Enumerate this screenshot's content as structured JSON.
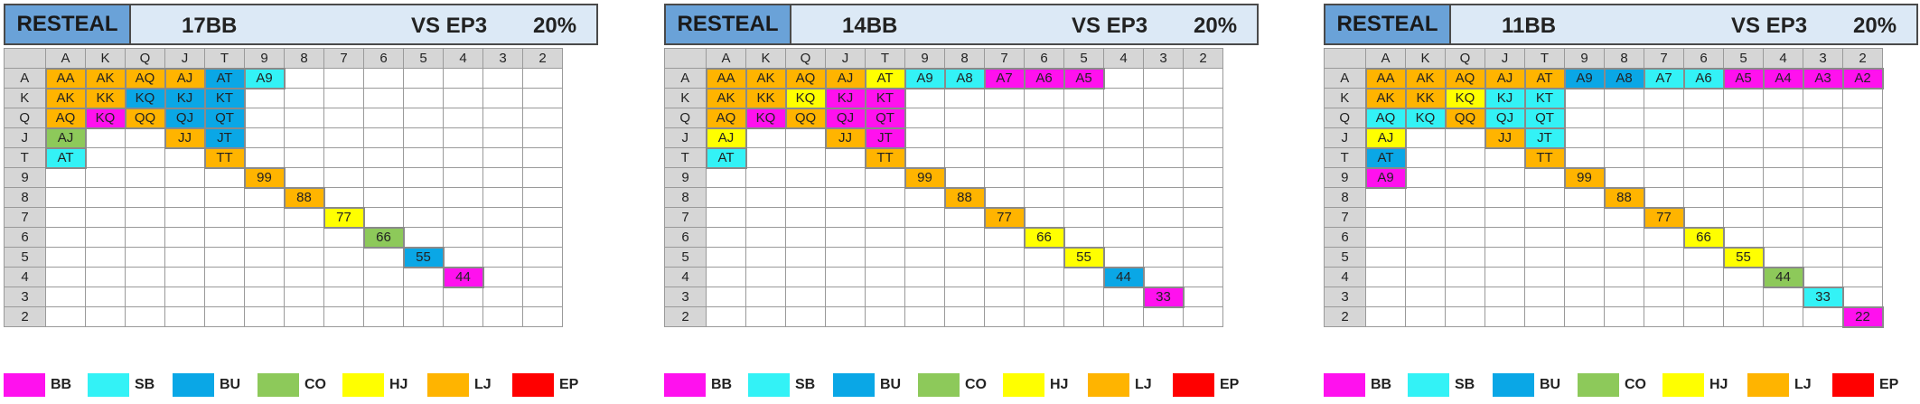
{
  "colors": {
    "BB": "#ff11ee",
    "SB": "#33f2f6",
    "BU": "#0aa7e6",
    "CO": "#8dc95a",
    "HJ": "#ffff00",
    "LJ": "#ffb400",
    "EP": "#ff0000"
  },
  "ranks": [
    "A",
    "K",
    "Q",
    "J",
    "T",
    "9",
    "8",
    "7",
    "6",
    "5",
    "4",
    "3",
    "2"
  ],
  "legend": [
    "BB",
    "SB",
    "BU",
    "CO",
    "HJ",
    "LJ",
    "EP"
  ],
  "panels": [
    {
      "title": "RESTEAL",
      "stack": "17BB",
      "vs": "VS EP3",
      "pct": "20%",
      "cells": [
        {
          "r": 0,
          "c": 0,
          "t": "AA",
          "p": "LJ"
        },
        {
          "r": 0,
          "c": 1,
          "t": "AK",
          "p": "LJ"
        },
        {
          "r": 0,
          "c": 2,
          "t": "AQ",
          "p": "LJ"
        },
        {
          "r": 0,
          "c": 3,
          "t": "AJ",
          "p": "LJ"
        },
        {
          "r": 0,
          "c": 4,
          "t": "AT",
          "p": "BU"
        },
        {
          "r": 0,
          "c": 5,
          "t": "A9",
          "p": "SB"
        },
        {
          "r": 1,
          "c": 0,
          "t": "AK",
          "p": "LJ"
        },
        {
          "r": 1,
          "c": 1,
          "t": "KK",
          "p": "LJ"
        },
        {
          "r": 1,
          "c": 2,
          "t": "KQ",
          "p": "BU"
        },
        {
          "r": 1,
          "c": 3,
          "t": "KJ",
          "p": "BU"
        },
        {
          "r": 1,
          "c": 4,
          "t": "KT",
          "p": "BU"
        },
        {
          "r": 2,
          "c": 0,
          "t": "AQ",
          "p": "LJ"
        },
        {
          "r": 2,
          "c": 1,
          "t": "KQ",
          "p": "BB"
        },
        {
          "r": 2,
          "c": 2,
          "t": "QQ",
          "p": "LJ"
        },
        {
          "r": 2,
          "c": 3,
          "t": "QJ",
          "p": "BU"
        },
        {
          "r": 2,
          "c": 4,
          "t": "QT",
          "p": "BU"
        },
        {
          "r": 3,
          "c": 0,
          "t": "AJ",
          "p": "CO"
        },
        {
          "r": 3,
          "c": 3,
          "t": "JJ",
          "p": "LJ"
        },
        {
          "r": 3,
          "c": 4,
          "t": "JT",
          "p": "BU"
        },
        {
          "r": 4,
          "c": 0,
          "t": "AT",
          "p": "SB"
        },
        {
          "r": 4,
          "c": 4,
          "t": "TT",
          "p": "LJ"
        },
        {
          "r": 5,
          "c": 5,
          "t": "99",
          "p": "LJ"
        },
        {
          "r": 6,
          "c": 6,
          "t": "88",
          "p": "LJ"
        },
        {
          "r": 7,
          "c": 7,
          "t": "77",
          "p": "HJ"
        },
        {
          "r": 8,
          "c": 8,
          "t": "66",
          "p": "CO"
        },
        {
          "r": 9,
          "c": 9,
          "t": "55",
          "p": "BU"
        },
        {
          "r": 10,
          "c": 10,
          "t": "44",
          "p": "BB"
        }
      ]
    },
    {
      "title": "RESTEAL",
      "stack": "14BB",
      "vs": "VS EP3",
      "pct": "20%",
      "cells": [
        {
          "r": 0,
          "c": 0,
          "t": "AA",
          "p": "LJ"
        },
        {
          "r": 0,
          "c": 1,
          "t": "AK",
          "p": "LJ"
        },
        {
          "r": 0,
          "c": 2,
          "t": "AQ",
          "p": "LJ"
        },
        {
          "r": 0,
          "c": 3,
          "t": "AJ",
          "p": "LJ"
        },
        {
          "r": 0,
          "c": 4,
          "t": "AT",
          "p": "HJ"
        },
        {
          "r": 0,
          "c": 5,
          "t": "A9",
          "p": "SB"
        },
        {
          "r": 0,
          "c": 6,
          "t": "A8",
          "p": "SB"
        },
        {
          "r": 0,
          "c": 7,
          "t": "A7",
          "p": "BB"
        },
        {
          "r": 0,
          "c": 8,
          "t": "A6",
          "p": "BB"
        },
        {
          "r": 0,
          "c": 9,
          "t": "A5",
          "p": "BB"
        },
        {
          "r": 1,
          "c": 0,
          "t": "AK",
          "p": "LJ"
        },
        {
          "r": 1,
          "c": 1,
          "t": "KK",
          "p": "LJ"
        },
        {
          "r": 1,
          "c": 2,
          "t": "KQ",
          "p": "HJ"
        },
        {
          "r": 1,
          "c": 3,
          "t": "KJ",
          "p": "BB"
        },
        {
          "r": 1,
          "c": 4,
          "t": "KT",
          "p": "BB"
        },
        {
          "r": 2,
          "c": 0,
          "t": "AQ",
          "p": "LJ"
        },
        {
          "r": 2,
          "c": 1,
          "t": "KQ",
          "p": "BB"
        },
        {
          "r": 2,
          "c": 2,
          "t": "QQ",
          "p": "LJ"
        },
        {
          "r": 2,
          "c": 3,
          "t": "QJ",
          "p": "BB"
        },
        {
          "r": 2,
          "c": 4,
          "t": "QT",
          "p": "BB"
        },
        {
          "r": 3,
          "c": 0,
          "t": "AJ",
          "p": "HJ"
        },
        {
          "r": 3,
          "c": 3,
          "t": "JJ",
          "p": "LJ"
        },
        {
          "r": 3,
          "c": 4,
          "t": "JT",
          "p": "BB"
        },
        {
          "r": 4,
          "c": 0,
          "t": "AT",
          "p": "SB"
        },
        {
          "r": 4,
          "c": 4,
          "t": "TT",
          "p": "LJ"
        },
        {
          "r": 5,
          "c": 5,
          "t": "99",
          "p": "LJ"
        },
        {
          "r": 6,
          "c": 6,
          "t": "88",
          "p": "LJ"
        },
        {
          "r": 7,
          "c": 7,
          "t": "77",
          "p": "LJ"
        },
        {
          "r": 8,
          "c": 8,
          "t": "66",
          "p": "HJ"
        },
        {
          "r": 9,
          "c": 9,
          "t": "55",
          "p": "HJ"
        },
        {
          "r": 10,
          "c": 10,
          "t": "44",
          "p": "BU"
        },
        {
          "r": 11,
          "c": 11,
          "t": "33",
          "p": "BB"
        }
      ]
    },
    {
      "title": "RESTEAL",
      "stack": "11BB",
      "vs": "VS EP3",
      "pct": "20%",
      "cells": [
        {
          "r": 0,
          "c": 0,
          "t": "AA",
          "p": "LJ"
        },
        {
          "r": 0,
          "c": 1,
          "t": "AK",
          "p": "LJ"
        },
        {
          "r": 0,
          "c": 2,
          "t": "AQ",
          "p": "LJ"
        },
        {
          "r": 0,
          "c": 3,
          "t": "AJ",
          "p": "LJ"
        },
        {
          "r": 0,
          "c": 4,
          "t": "AT",
          "p": "LJ"
        },
        {
          "r": 0,
          "c": 5,
          "t": "A9",
          "p": "BU"
        },
        {
          "r": 0,
          "c": 6,
          "t": "A8",
          "p": "BU"
        },
        {
          "r": 0,
          "c": 7,
          "t": "A7",
          "p": "SB"
        },
        {
          "r": 0,
          "c": 8,
          "t": "A6",
          "p": "SB"
        },
        {
          "r": 0,
          "c": 9,
          "t": "A5",
          "p": "BB"
        },
        {
          "r": 0,
          "c": 10,
          "t": "A4",
          "p": "BB"
        },
        {
          "r": 0,
          "c": 11,
          "t": "A3",
          "p": "BB"
        },
        {
          "r": 0,
          "c": 12,
          "t": "A2",
          "p": "BB"
        },
        {
          "r": 1,
          "c": 0,
          "t": "AK",
          "p": "LJ"
        },
        {
          "r": 1,
          "c": 1,
          "t": "KK",
          "p": "LJ"
        },
        {
          "r": 1,
          "c": 2,
          "t": "KQ",
          "p": "HJ"
        },
        {
          "r": 1,
          "c": 3,
          "t": "KJ",
          "p": "SB"
        },
        {
          "r": 1,
          "c": 4,
          "t": "KT",
          "p": "SB"
        },
        {
          "r": 2,
          "c": 0,
          "t": "AQ",
          "p": "SB"
        },
        {
          "r": 2,
          "c": 1,
          "t": "KQ",
          "p": "SB"
        },
        {
          "r": 2,
          "c": 2,
          "t": "QQ",
          "p": "LJ"
        },
        {
          "r": 2,
          "c": 3,
          "t": "QJ",
          "p": "SB"
        },
        {
          "r": 2,
          "c": 4,
          "t": "QT",
          "p": "SB"
        },
        {
          "r": 3,
          "c": 0,
          "t": "AJ",
          "p": "HJ"
        },
        {
          "r": 3,
          "c": 3,
          "t": "JJ",
          "p": "LJ"
        },
        {
          "r": 3,
          "c": 4,
          "t": "JT",
          "p": "SB"
        },
        {
          "r": 4,
          "c": 0,
          "t": "AT",
          "p": "BU"
        },
        {
          "r": 4,
          "c": 4,
          "t": "TT",
          "p": "LJ"
        },
        {
          "r": 5,
          "c": 0,
          "t": "A9",
          "p": "BB"
        },
        {
          "r": 5,
          "c": 5,
          "t": "99",
          "p": "LJ"
        },
        {
          "r": 6,
          "c": 6,
          "t": "88",
          "p": "LJ"
        },
        {
          "r": 7,
          "c": 7,
          "t": "77",
          "p": "LJ"
        },
        {
          "r": 8,
          "c": 8,
          "t": "66",
          "p": "HJ"
        },
        {
          "r": 9,
          "c": 9,
          "t": "55",
          "p": "HJ"
        },
        {
          "r": 10,
          "c": 10,
          "t": "44",
          "p": "CO"
        },
        {
          "r": 11,
          "c": 11,
          "t": "33",
          "p": "SB"
        },
        {
          "r": 12,
          "c": 12,
          "t": "22",
          "p": "BB"
        }
      ]
    }
  ]
}
